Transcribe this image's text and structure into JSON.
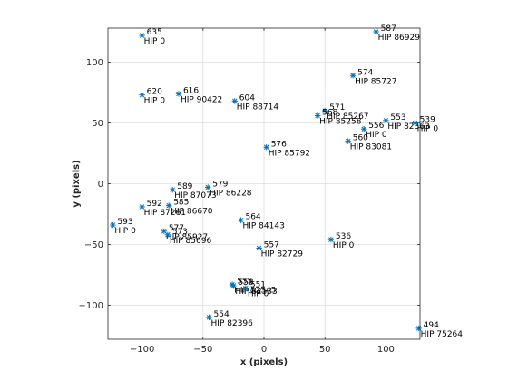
{
  "chart_data": {
    "type": "scatter",
    "title": "",
    "xlabel": "x (pixels)",
    "ylabel": "y (pixels)",
    "xlim": [
      -128,
      128
    ],
    "ylim": [
      -128,
      128
    ],
    "xticks": [
      -100,
      -50,
      0,
      50,
      100
    ],
    "yticks": [
      -100,
      -50,
      0,
      50,
      100
    ],
    "grid": true,
    "marker": "*",
    "marker_color": "#0072bd",
    "points": [
      {
        "x": -100,
        "y": 122,
        "id": "635",
        "name": "HIP 0"
      },
      {
        "x": 92,
        "y": 125,
        "id": "587",
        "name": "HIP 86929"
      },
      {
        "x": 73,
        "y": 89,
        "id": "574",
        "name": "HIP 85727"
      },
      {
        "x": -100,
        "y": 73,
        "id": "620",
        "name": "HIP 0"
      },
      {
        "x": -70,
        "y": 74,
        "id": "616",
        "name": "HIP 90422"
      },
      {
        "x": -24,
        "y": 68,
        "id": "604",
        "name": "HIP 88714"
      },
      {
        "x": 50,
        "y": 60,
        "id": "571",
        "name": "HIP 85267"
      },
      {
        "x": 44,
        "y": 56,
        "id": "568",
        "name": "HIP 85258"
      },
      {
        "x": 100,
        "y": 52,
        "id": "553",
        "name": "HIP 82363"
      },
      {
        "x": 82,
        "y": 45,
        "id": "556",
        "name": "HIP 0"
      },
      {
        "x": 124,
        "y": 50,
        "id": "539",
        "name": "HIP 0"
      },
      {
        "x": 69,
        "y": 35,
        "id": "560",
        "name": "HIP 83081"
      },
      {
        "x": 2,
        "y": 30,
        "id": "576",
        "name": "HIP 85792"
      },
      {
        "x": -75,
        "y": -5,
        "id": "589",
        "name": "HIP 87073"
      },
      {
        "x": -46,
        "y": -3,
        "id": "579",
        "name": "HIP 86228"
      },
      {
        "x": -78,
        "y": -18,
        "id": "585",
        "name": "HIP 86670"
      },
      {
        "x": -100,
        "y": -19,
        "id": "592",
        "name": "HIP 87261"
      },
      {
        "x": -124,
        "y": -34,
        "id": "593",
        "name": "HIP 0"
      },
      {
        "x": -19,
        "y": -30,
        "id": "564",
        "name": "HIP 84143"
      },
      {
        "x": -82,
        "y": -39,
        "id": "577",
        "name": "HIP 85927"
      },
      {
        "x": -79,
        "y": -42,
        "id": "573",
        "name": "HIP 85696"
      },
      {
        "x": -4,
        "y": -53,
        "id": "557",
        "name": "HIP 82729"
      },
      {
        "x": 55,
        "y": -46,
        "id": "536",
        "name": "HIP 0"
      },
      {
        "x": -26,
        "y": -83,
        "id": "555",
        "name": "HIP 82545"
      },
      {
        "x": -25,
        "y": -84,
        "id": "558",
        "name": "HIP 82533"
      },
      {
        "x": -15,
        "y": -86,
        "id": "551",
        "name": "HIP 0"
      },
      {
        "x": -45,
        "y": -110,
        "id": "554",
        "name": "HIP 82396"
      },
      {
        "x": 127,
        "y": -119,
        "id": "494",
        "name": "HIP 75264"
      }
    ]
  }
}
